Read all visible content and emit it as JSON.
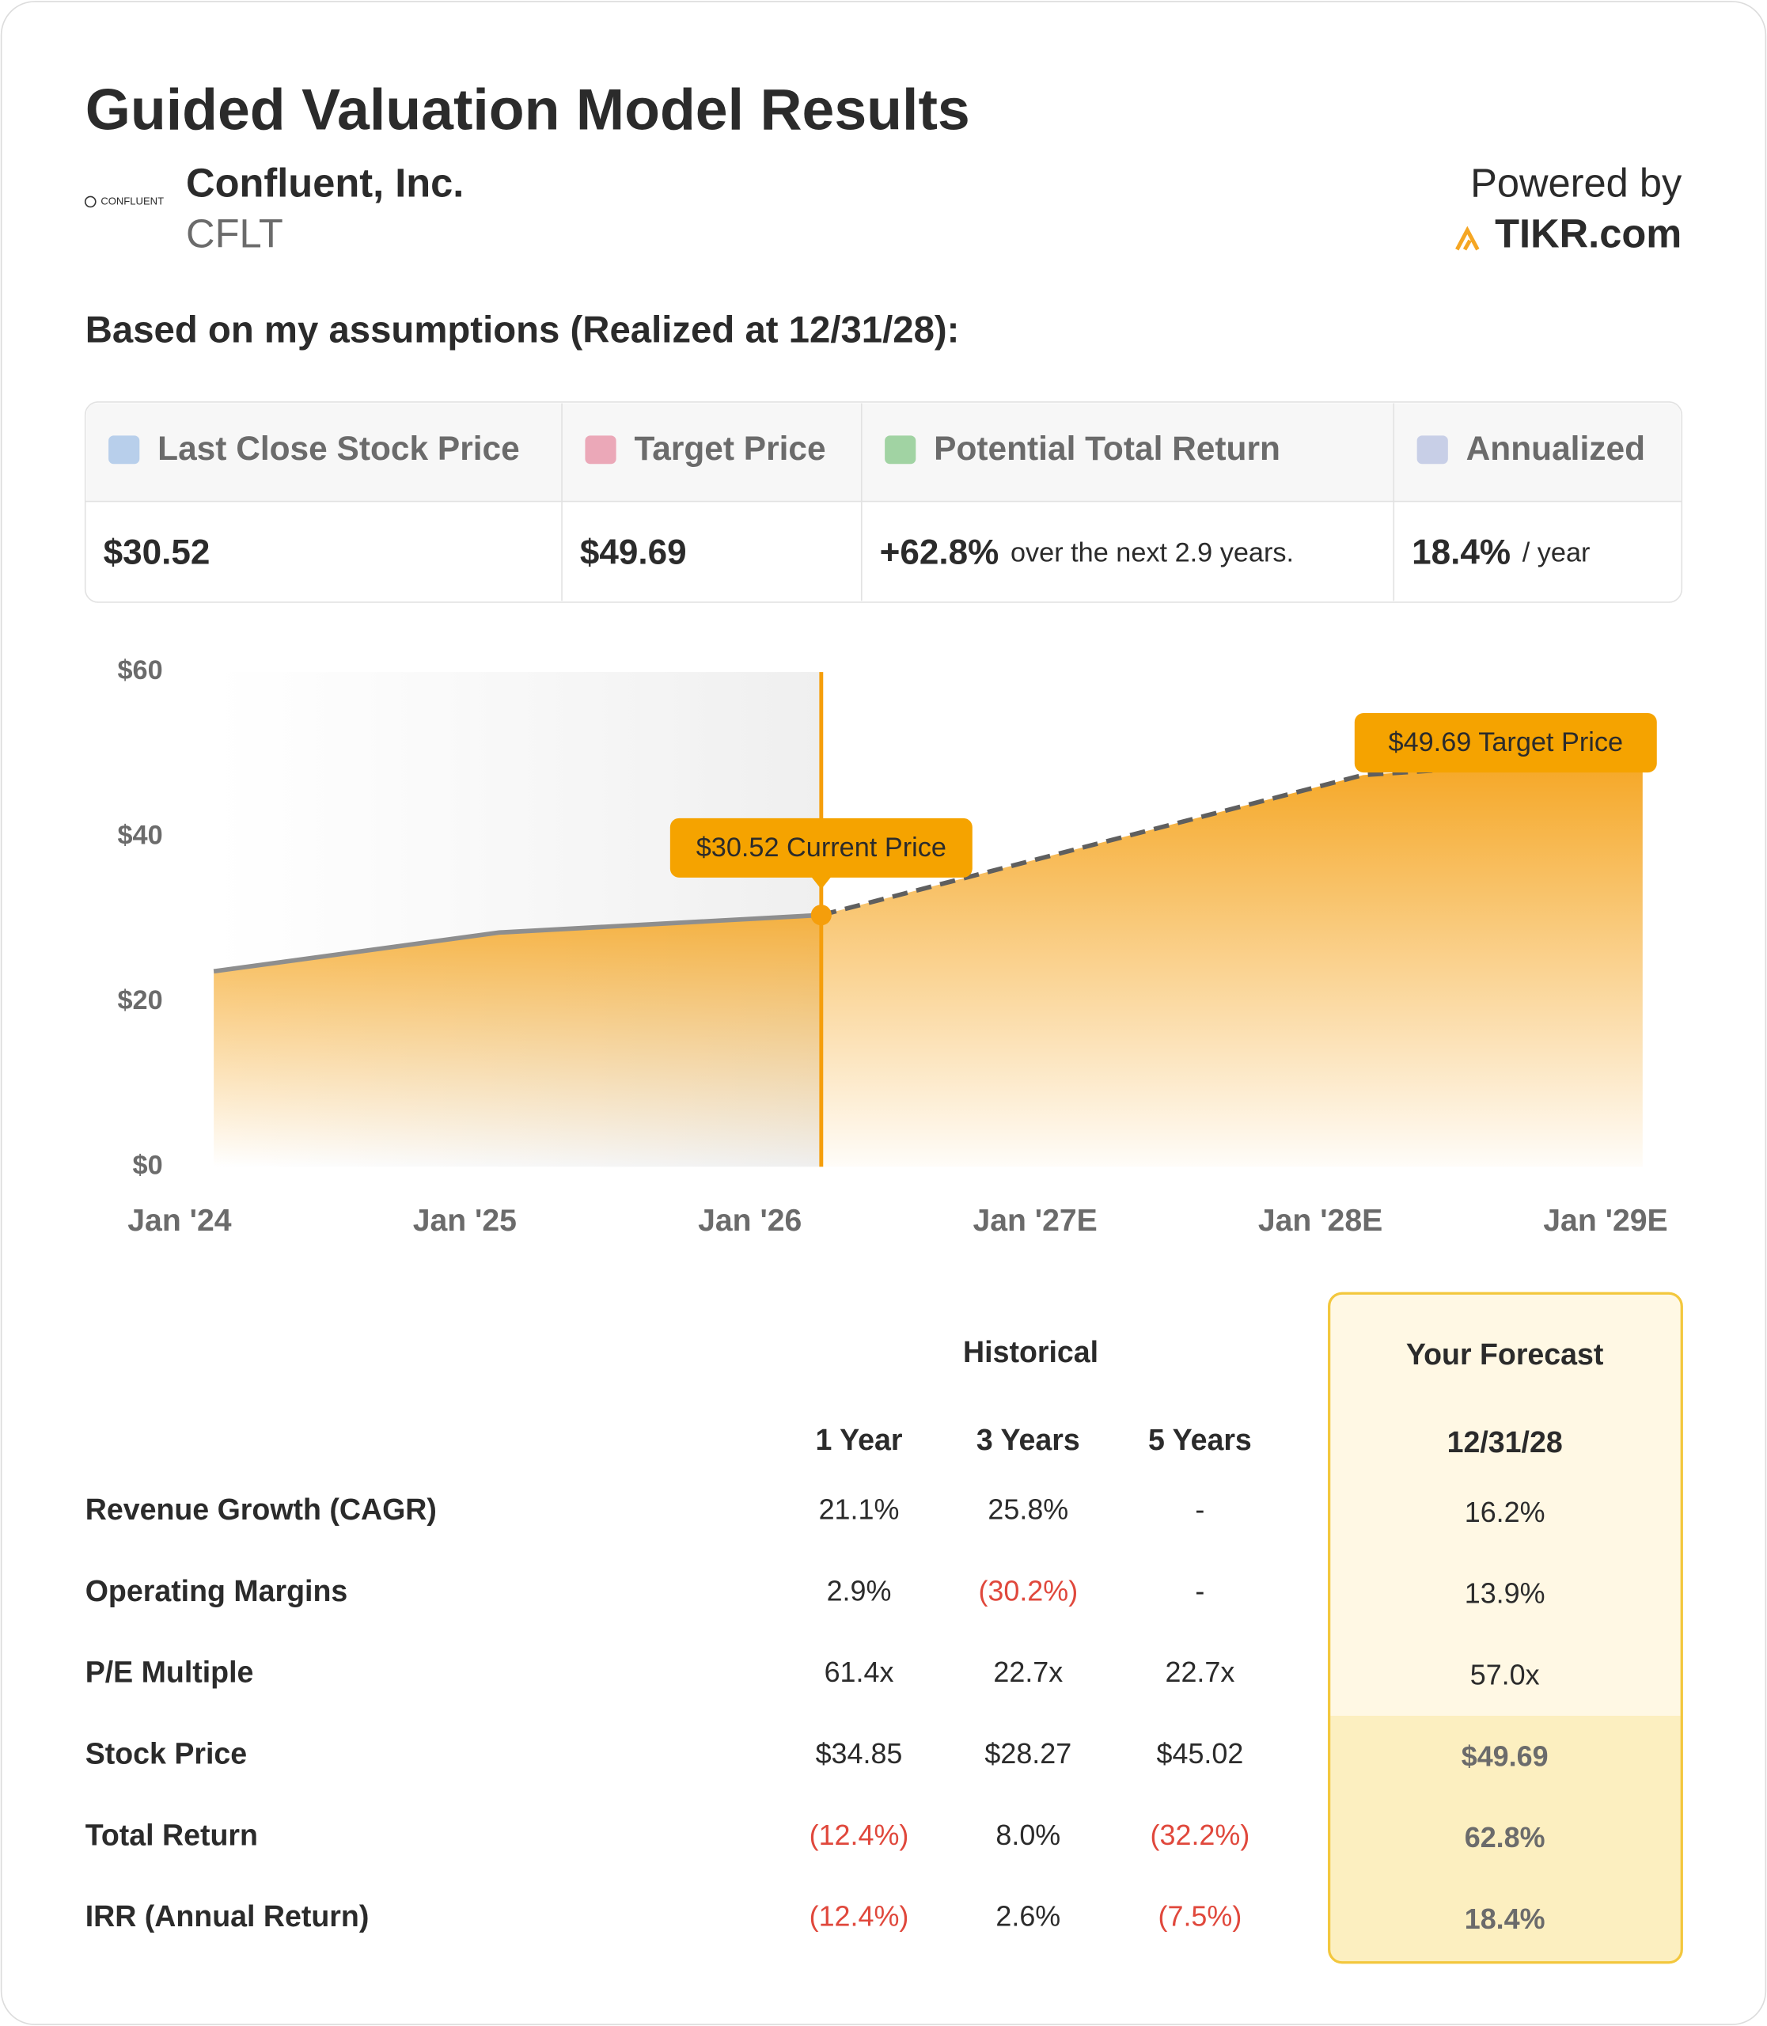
{
  "header": {
    "title": "Guided Valuation Model Results",
    "logo_text": "CONFLUENT",
    "company": "Confluent, Inc.",
    "ticker": "CFLT",
    "powered_by": "Powered by",
    "brand": "TIKR.com"
  },
  "subtitle": "Based on my assumptions (Realized at 12/31/28):",
  "summary": {
    "columns": [
      {
        "label": "Last Close Stock Price",
        "value": "$30.52"
      },
      {
        "label": "Target Price",
        "value": "$49.69"
      },
      {
        "label": "Potential Total Return",
        "value": "+62.8%",
        "note": "over the next 2.9 years."
      },
      {
        "label": "Annualized",
        "value": "18.4%",
        "note": "/ year"
      }
    ]
  },
  "chart_data": {
    "type": "area",
    "x": [
      2024.12,
      2025.12,
      2026.25,
      2028.15,
      2029.13
    ],
    "series": [
      {
        "color": "#8e8e8e",
        "values": [
          23.7,
          28.4,
          30.52,
          null,
          null
        ]
      },
      {
        "color": "#5f5f5f",
        "dashed": true,
        "values": [
          null,
          null,
          30.52,
          47.5,
          49.69
        ]
      }
    ],
    "xlim": [
      2024,
      2029
    ],
    "xticks": [
      {
        "value": 2024,
        "label": "Jan '24"
      },
      {
        "value": 2025,
        "label": "Jan '25"
      },
      {
        "value": 2026,
        "label": "Jan '26"
      },
      {
        "value": 2027,
        "label": "Jan '27E"
      },
      {
        "value": 2028,
        "label": "Jan '28E"
      },
      {
        "value": 2029,
        "label": "Jan '29E"
      }
    ],
    "ylim": [
      0,
      60
    ],
    "yticks": [
      {
        "value": 0,
        "label": "$0"
      },
      {
        "value": 20,
        "label": "$20"
      },
      {
        "value": 40,
        "label": "$40"
      },
      {
        "value": 60,
        "label": "$60"
      }
    ],
    "grid": false,
    "fill_color": "#f5a623",
    "annotations": [
      {
        "text": "$30.52 Current Price",
        "x": 2026.25,
        "y": 30.52
      },
      {
        "text": "$49.69 Target Price",
        "x": 2029.13,
        "y": 49.69
      }
    ]
  },
  "table": {
    "group_historical": "Historical",
    "group_forecast": "Your Forecast",
    "columns": [
      "1 Year",
      "3 Years",
      "5 Years",
      "12/31/28"
    ],
    "rows": [
      [
        "Revenue Growth (CAGR)",
        "21.1%",
        "25.8%",
        "-",
        "16.2%"
      ],
      [
        "Operating Margins",
        "2.9%",
        "(30.2%)",
        "-",
        "13.9%"
      ],
      [
        "P/E Multiple",
        "61.4x",
        "22.7x",
        "22.7x",
        "57.0x"
      ],
      [
        "Stock Price",
        "$34.85",
        "$28.27",
        "$45.02",
        "$49.69"
      ],
      [
        "Total Return",
        "(12.4%)",
        "8.0%",
        "(32.2%)",
        "62.8%"
      ],
      [
        "IRR (Annual Return)",
        "(12.4%)",
        "2.6%",
        "(7.5%)",
        "18.4%"
      ]
    ]
  }
}
